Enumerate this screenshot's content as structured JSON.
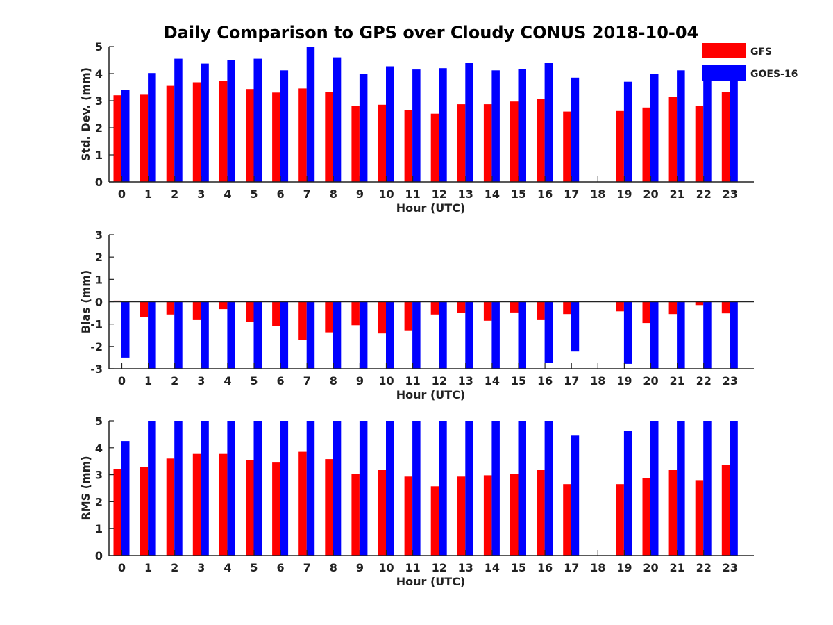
{
  "title": "Daily Comparison to GPS over Cloudy CONUS 2018-10-04",
  "colors": {
    "GFS": "#ff0000",
    "GOES-16": "#0000ff",
    "axis": "#222222"
  },
  "legend": [
    "GFS",
    "GOES-16"
  ],
  "chart_data": [
    {
      "type": "bar",
      "ylabel": "Std. Dev. (mm)",
      "xlabel": "Hour (UTC)",
      "ylim": [
        0,
        5
      ],
      "yticks": [
        0,
        1,
        2,
        3,
        4,
        5
      ],
      "categories": [
        "0",
        "1",
        "2",
        "3",
        "4",
        "5",
        "6",
        "7",
        "8",
        "9",
        "10",
        "11",
        "12",
        "13",
        "14",
        "15",
        "16",
        "17",
        "18",
        "19",
        "20",
        "21",
        "22",
        "23"
      ],
      "series": [
        {
          "name": "GFS",
          "values": [
            3.2,
            3.22,
            3.55,
            3.68,
            3.73,
            3.43,
            3.3,
            3.45,
            3.33,
            2.82,
            2.85,
            2.66,
            2.52,
            2.87,
            2.87,
            2.97,
            3.07,
            2.6,
            null,
            2.62,
            2.75,
            3.13,
            2.82,
            3.33
          ]
        },
        {
          "name": "GOES-16",
          "values": [
            3.4,
            4.02,
            4.55,
            4.37,
            4.5,
            4.55,
            4.12,
            5.0,
            4.6,
            3.98,
            4.27,
            4.15,
            4.2,
            4.4,
            4.12,
            4.17,
            4.4,
            3.85,
            null,
            3.7,
            3.98,
            4.12,
            3.9,
            3.85
          ]
        }
      ]
    },
    {
      "type": "bar",
      "ylabel": "Bias (mm)",
      "xlabel": "Hour (UTC)",
      "ylim": [
        -3,
        3
      ],
      "yticks": [
        -3,
        -2,
        -1,
        0,
        1,
        2,
        3
      ],
      "categories": [
        "0",
        "1",
        "2",
        "3",
        "4",
        "5",
        "6",
        "7",
        "8",
        "9",
        "10",
        "11",
        "12",
        "13",
        "14",
        "15",
        "16",
        "17",
        "18",
        "19",
        "20",
        "21",
        "22",
        "23"
      ],
      "series": [
        {
          "name": "GFS",
          "values": [
            0.05,
            -0.67,
            -0.57,
            -0.82,
            -0.33,
            -0.9,
            -1.1,
            -1.7,
            -1.37,
            -1.05,
            -1.42,
            -1.28,
            -0.57,
            -0.5,
            -0.85,
            -0.48,
            -0.82,
            -0.55,
            null,
            -0.43,
            -0.95,
            -0.55,
            -0.15,
            -0.52
          ]
        },
        {
          "name": "GOES-16",
          "values": [
            -2.5,
            -3.0,
            -3.0,
            -3.0,
            -3.0,
            -3.0,
            -3.0,
            -3.0,
            -3.0,
            -3.0,
            -3.0,
            -3.0,
            -3.0,
            -3.0,
            -3.0,
            -3.0,
            -2.75,
            -2.23,
            null,
            -2.78,
            -3.0,
            -3.0,
            -3.0,
            -3.0
          ]
        }
      ]
    },
    {
      "type": "bar",
      "ylabel": "RMS (mm)",
      "xlabel": "Hour (UTC)",
      "ylim": [
        0,
        5
      ],
      "yticks": [
        0,
        1,
        2,
        3,
        4,
        5
      ],
      "categories": [
        "0",
        "1",
        "2",
        "3",
        "4",
        "5",
        "6",
        "7",
        "8",
        "9",
        "10",
        "11",
        "12",
        "13",
        "14",
        "15",
        "16",
        "17",
        "18",
        "19",
        "20",
        "21",
        "22",
        "23"
      ],
      "series": [
        {
          "name": "GFS",
          "values": [
            3.2,
            3.3,
            3.6,
            3.77,
            3.77,
            3.55,
            3.45,
            3.85,
            3.58,
            3.02,
            3.17,
            2.93,
            2.57,
            2.93,
            2.98,
            3.02,
            3.17,
            2.65,
            null,
            2.65,
            2.88,
            3.17,
            2.8,
            3.35
          ]
        },
        {
          "name": "GOES-16",
          "values": [
            4.25,
            5.0,
            5.0,
            5.0,
            5.0,
            5.0,
            5.0,
            5.0,
            5.0,
            5.0,
            5.0,
            5.0,
            5.0,
            5.0,
            5.0,
            5.0,
            5.0,
            4.45,
            null,
            4.62,
            5.0,
            5.0,
            5.0,
            5.0
          ]
        }
      ]
    }
  ]
}
